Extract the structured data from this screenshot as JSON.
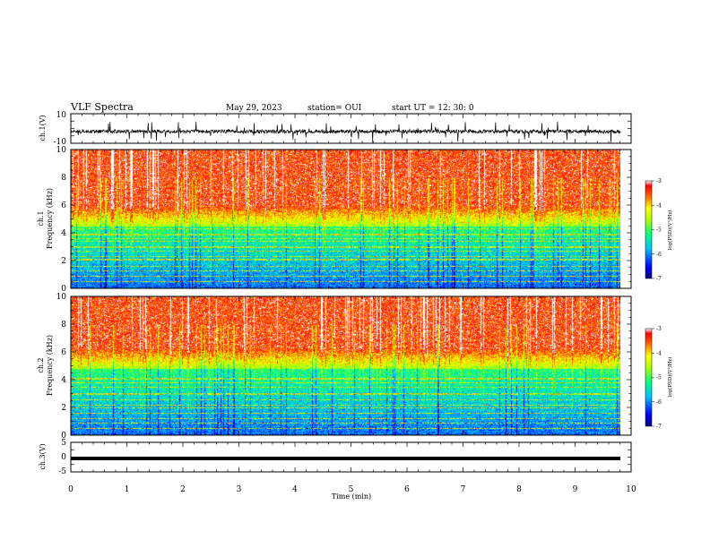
{
  "header": {
    "title": "VLF Spectra",
    "date": "May 29, 2023",
    "station": "station= OUI",
    "start": "start  UT  =   12: 30: 0"
  },
  "chart_data": [
    {
      "type": "line",
      "panel": "ch1-waveform",
      "ylabel": "ch.1(V)",
      "ytick_labels": [
        "10",
        "-10"
      ],
      "ylim": [
        -10,
        10
      ],
      "xlim": [
        0,
        9.83
      ],
      "trace_color": "#000000",
      "values_description_baseline": -2
    },
    {
      "type": "heatmap",
      "panel": "ch1-spectrogram",
      "ylabel": "ch.1\nFrequency (kHz)",
      "ylim": [
        0,
        10
      ],
      "yticks": [
        "0",
        "2",
        "4",
        "6",
        "8",
        "10"
      ],
      "xlim": [
        0,
        9.83
      ],
      "colorbar": {
        "label": "log(PSD)(V²/Hz)",
        "ticks": [
          "-3",
          "-4",
          "-5",
          "-6",
          "-7"
        ],
        "range": [
          -7,
          -3
        ]
      },
      "tone_lines_khz": [
        0.5,
        0.9,
        1.3,
        1.6,
        2.1,
        2.3,
        2.7,
        3.0,
        3.4,
        3.6,
        3.9,
        4.3,
        4.8
      ],
      "low_band_upper_khz": 4.5
    },
    {
      "type": "heatmap",
      "panel": "ch2-spectrogram",
      "ylabel": "ch.2\nFrequency (kHz)",
      "ylim": [
        0,
        10
      ],
      "yticks": [
        "0",
        "2",
        "4",
        "6",
        "8",
        "10"
      ],
      "xlim": [
        0,
        9.83
      ],
      "colorbar": {
        "label": "log(PSD)(V²/Hz)",
        "ticks": [
          "-3",
          "-4",
          "-5",
          "-6",
          "-7"
        ],
        "range": [
          -7,
          -3
        ]
      },
      "tone_lines_khz": [
        0.5,
        0.9,
        1.2,
        1.6,
        2.0,
        2.2,
        2.6,
        3.0,
        3.5,
        3.8,
        4.1
      ],
      "low_band_upper_khz": 4.8
    },
    {
      "type": "line",
      "panel": "ch3-waveform",
      "ylabel": "ch.3(V)",
      "ytick_labels": [
        "5",
        "0",
        "-5"
      ],
      "ylim": [
        -5,
        5
      ],
      "xlim": [
        0,
        9.83
      ],
      "constant_value": -1,
      "trace_color": "#000000"
    }
  ],
  "xaxis": {
    "label": "Time  (min)",
    "ticks": [
      "0",
      "1",
      "2",
      "3",
      "4",
      "5",
      "6",
      "7",
      "8",
      "9",
      "10"
    ],
    "range": [
      0,
      10
    ]
  }
}
